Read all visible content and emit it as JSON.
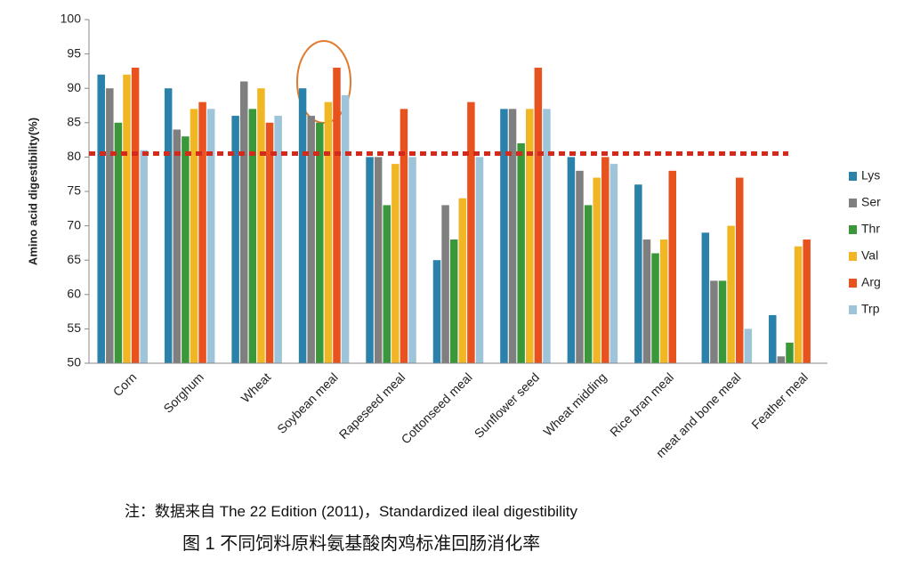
{
  "chart_data": {
    "type": "bar",
    "ylabel": "Amino acid digestibility(%)",
    "categories": [
      "Corn",
      "Sorghum",
      "Wheat",
      "Soybean meal",
      "Rapeseed meal",
      "Cottonseed meal",
      "Sunflower seed",
      "Wheat midding",
      "Rice bran meal",
      "meat and bone meal",
      "Feather meal"
    ],
    "series": [
      {
        "name": "Lys",
        "color": "#2a81aa",
        "values": [
          92,
          90,
          86,
          90,
          80,
          65,
          87,
          80,
          76,
          69,
          57
        ]
      },
      {
        "name": "Ser",
        "color": "#7f7f7f",
        "values": [
          90,
          84,
          91,
          86,
          80,
          73,
          87,
          78,
          68,
          62,
          51
        ]
      },
      {
        "name": "Thr",
        "color": "#3a973a",
        "values": [
          85,
          83,
          87,
          85,
          73,
          68,
          82,
          73,
          66,
          62,
          53
        ]
      },
      {
        "name": "Val",
        "color": "#f0b624",
        "values": [
          92,
          87,
          90,
          88,
          79,
          74,
          87,
          77,
          68,
          70,
          67
        ]
      },
      {
        "name": "Arg",
        "color": "#e8521f",
        "values": [
          93,
          88,
          85,
          93,
          87,
          88,
          93,
          80,
          78,
          77,
          68
        ]
      },
      {
        "name": "Trp",
        "color": "#9ec4d9",
        "values": [
          81,
          87,
          86,
          89,
          80,
          80,
          87,
          79,
          null,
          55,
          null
        ]
      }
    ],
    "reference_line": 80.5,
    "ylim": [
      50,
      100
    ],
    "yticks": [
      50,
      55,
      60,
      65,
      70,
      75,
      80,
      85,
      90,
      95,
      100
    ],
    "grid": false,
    "legend": "right"
  },
  "note": "注：数据来自 The 22 Edition (2011)，Standardized ileal digestibility",
  "caption": "图 1  不同饲料原料氨基酸肉鸡标准回肠消化率"
}
